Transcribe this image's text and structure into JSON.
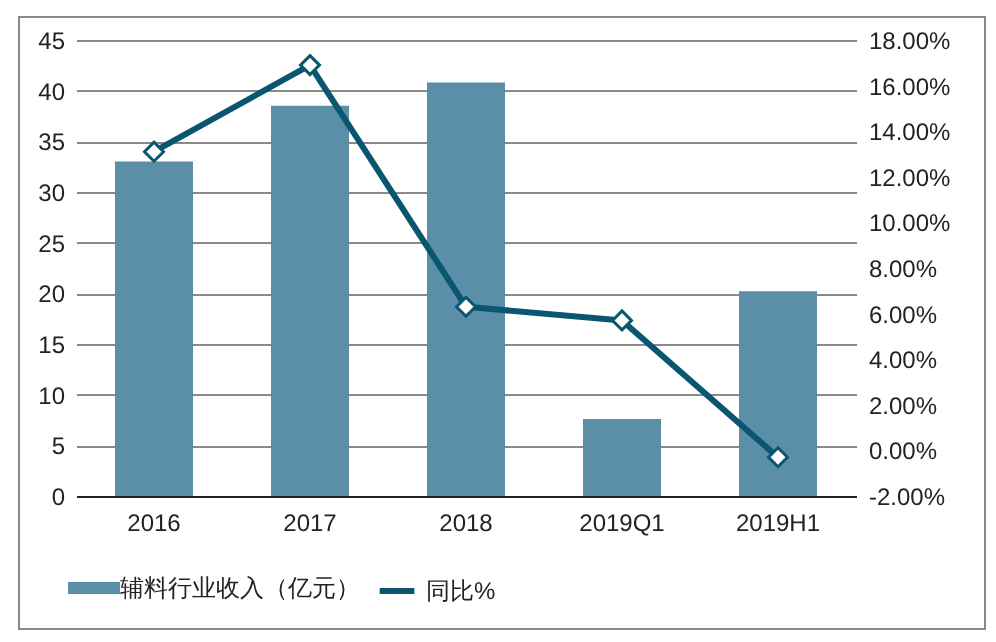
{
  "chart_data": {
    "type": "bar",
    "categories": [
      "2016",
      "2017",
      "2018",
      "2019Q1",
      "2019H1"
    ],
    "series": [
      {
        "name": "辅料行业收入（亿元）",
        "color": "#5b8fa8",
        "values": [
          33,
          38.5,
          40.8,
          7.6,
          20.2
        ]
      },
      {
        "name": "同比%",
        "type": "line",
        "axis": "y2",
        "color": "#0a5570",
        "marker": "diamond",
        "values": [
          13.1,
          16.9,
          6.3,
          5.7,
          -0.3
        ]
      }
    ],
    "ylim": [
      0,
      45
    ],
    "yticks": [
      0,
      5,
      10,
      15,
      20,
      25,
      30,
      35,
      40,
      45
    ],
    "y2lim": [
      -2,
      18
    ],
    "y2ticks": [
      {
        "value": -2,
        "label": "-2.00%"
      },
      {
        "value": 0,
        "label": "0.00%"
      },
      {
        "value": 2,
        "label": "2.00%"
      },
      {
        "value": 4,
        "label": "4.00%"
      },
      {
        "value": 6,
        "label": "6.00%"
      },
      {
        "value": 8,
        "label": "8.00%"
      },
      {
        "value": 10,
        "label": "10.00%"
      },
      {
        "value": 12,
        "label": "12.00%"
      },
      {
        "value": 14,
        "label": "14.00%"
      },
      {
        "value": 16,
        "label": "16.00%"
      },
      {
        "value": 18,
        "label": "18.00%"
      }
    ],
    "grid": "y",
    "legend": "bottom"
  }
}
